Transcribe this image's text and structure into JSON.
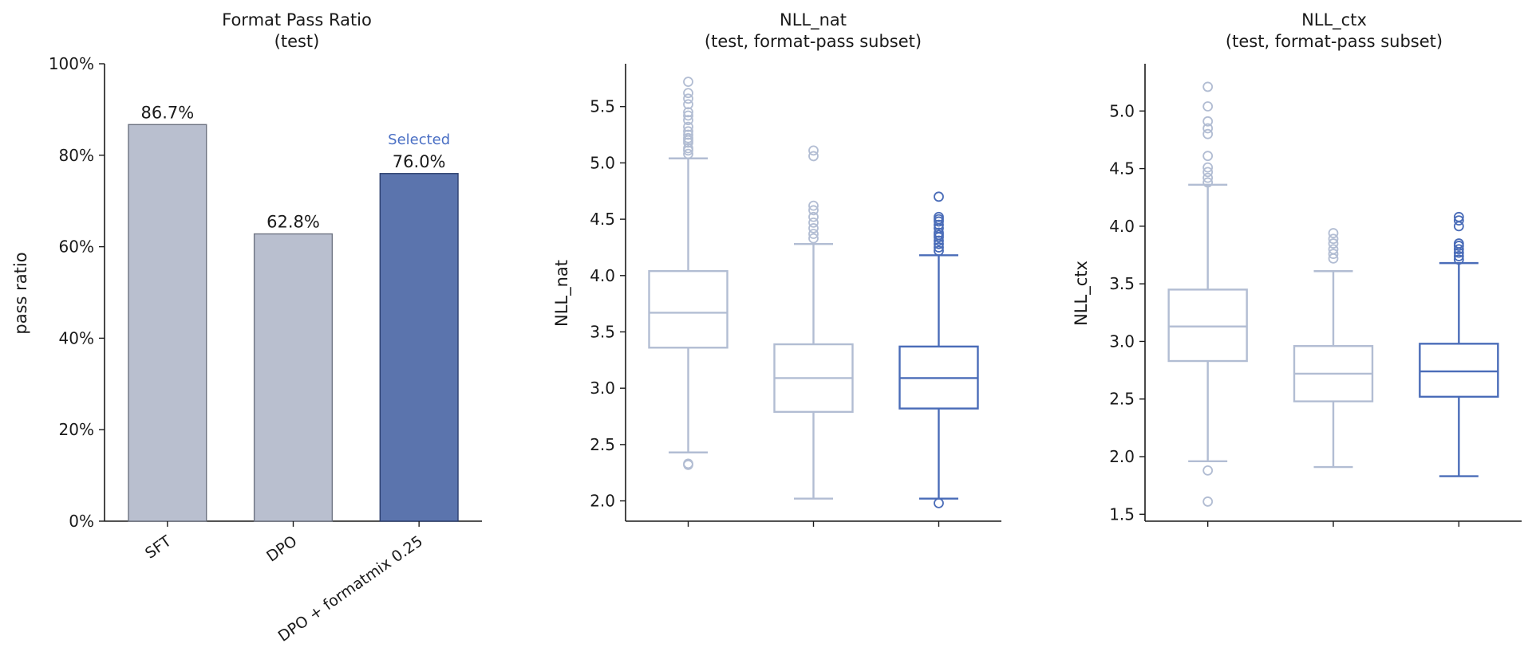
{
  "chart_data": [
    {
      "type": "bar",
      "title": "Format Pass Ratio",
      "subtitle": "(test)",
      "xlabel": "",
      "ylabel": "pass ratio",
      "ylim": [
        0,
        100
      ],
      "yticks": [
        0,
        20,
        40,
        60,
        80,
        100
      ],
      "ytick_labels": [
        "0%",
        "20%",
        "40%",
        "60%",
        "80%",
        "100%"
      ],
      "categories": [
        "SFT",
        "DPO",
        "DPO + formatmix 0.25"
      ],
      "values": [
        86.7,
        62.8,
        76.0
      ],
      "data_labels": [
        "86.7%",
        "62.8%",
        "76.0%"
      ],
      "colors": [
        "#b9bfcf",
        "#b9bfcf",
        "#5b74ad"
      ],
      "annotation": {
        "category_index": 2,
        "text": "Selected",
        "color": "#4a6fc4"
      },
      "grid": false
    },
    {
      "type": "box",
      "title": "NLL_nat",
      "subtitle": "(test, format-pass subset)",
      "xlabel": "",
      "ylabel": "NLL_nat",
      "ylim": [
        1.82,
        5.88
      ],
      "yticks": [
        2.0,
        2.5,
        3.0,
        3.5,
        4.0,
        4.5,
        5.0,
        5.5
      ],
      "ytick_labels": [
        "2.0",
        "2.5",
        "3.0",
        "3.5",
        "4.0",
        "4.5",
        "5.0",
        "5.5"
      ],
      "grid": false,
      "boxes": [
        {
          "q1": 3.36,
          "median": 3.67,
          "q3": 4.04,
          "whisker_low": 2.43,
          "whisker_high": 5.04,
          "color": "#b2bdd3",
          "outliers": [
            2.32,
            2.33,
            5.08,
            5.11,
            5.13,
            5.18,
            5.2,
            5.22,
            5.25,
            5.28,
            5.32,
            5.38,
            5.42,
            5.45,
            5.52,
            5.57,
            5.62,
            5.72
          ]
        },
        {
          "q1": 2.79,
          "median": 3.09,
          "q3": 3.39,
          "whisker_low": 2.02,
          "whisker_high": 4.28,
          "color": "#b2bdd3",
          "outliers": [
            4.33,
            4.37,
            4.42,
            4.47,
            4.52,
            4.58,
            4.62,
            5.06,
            5.11
          ]
        },
        {
          "q1": 2.82,
          "median": 3.09,
          "q3": 3.37,
          "whisker_low": 2.02,
          "whisker_high": 4.18,
          "color": "#4a6cb8",
          "outliers": [
            1.98,
            4.22,
            4.25,
            4.28,
            4.31,
            4.34,
            4.36,
            4.38,
            4.42,
            4.45,
            4.48,
            4.5,
            4.52,
            4.7
          ]
        }
      ]
    },
    {
      "type": "box",
      "title": "NLL_ctx",
      "subtitle": "(test, format-pass subset)",
      "xlabel": "",
      "ylabel": "NLL_ctx",
      "ylim": [
        1.44,
        5.41
      ],
      "yticks": [
        1.5,
        2.0,
        2.5,
        3.0,
        3.5,
        4.0,
        4.5,
        5.0
      ],
      "ytick_labels": [
        "1.5",
        "2.0",
        "2.5",
        "3.0",
        "3.5",
        "4.0",
        "4.5",
        "5.0"
      ],
      "grid": false,
      "boxes": [
        {
          "q1": 2.83,
          "median": 3.13,
          "q3": 3.45,
          "whisker_low": 1.96,
          "whisker_high": 4.36,
          "color": "#b2bdd3",
          "outliers": [
            1.61,
            1.88,
            4.38,
            4.42,
            4.47,
            4.51,
            4.61,
            4.8,
            4.85,
            4.91,
            5.04,
            5.21
          ]
        },
        {
          "q1": 2.48,
          "median": 2.72,
          "q3": 2.96,
          "whisker_low": 1.91,
          "whisker_high": 3.61,
          "color": "#b2bdd3",
          "outliers": [
            3.72,
            3.76,
            3.8,
            3.85,
            3.89,
            3.94
          ]
        },
        {
          "q1": 2.52,
          "median": 2.74,
          "q3": 2.98,
          "whisker_low": 1.83,
          "whisker_high": 3.68,
          "color": "#4a6cb8",
          "outliers": [
            3.71,
            3.74,
            3.77,
            3.8,
            3.83,
            3.85,
            4.0,
            4.05,
            4.08
          ]
        }
      ]
    }
  ]
}
